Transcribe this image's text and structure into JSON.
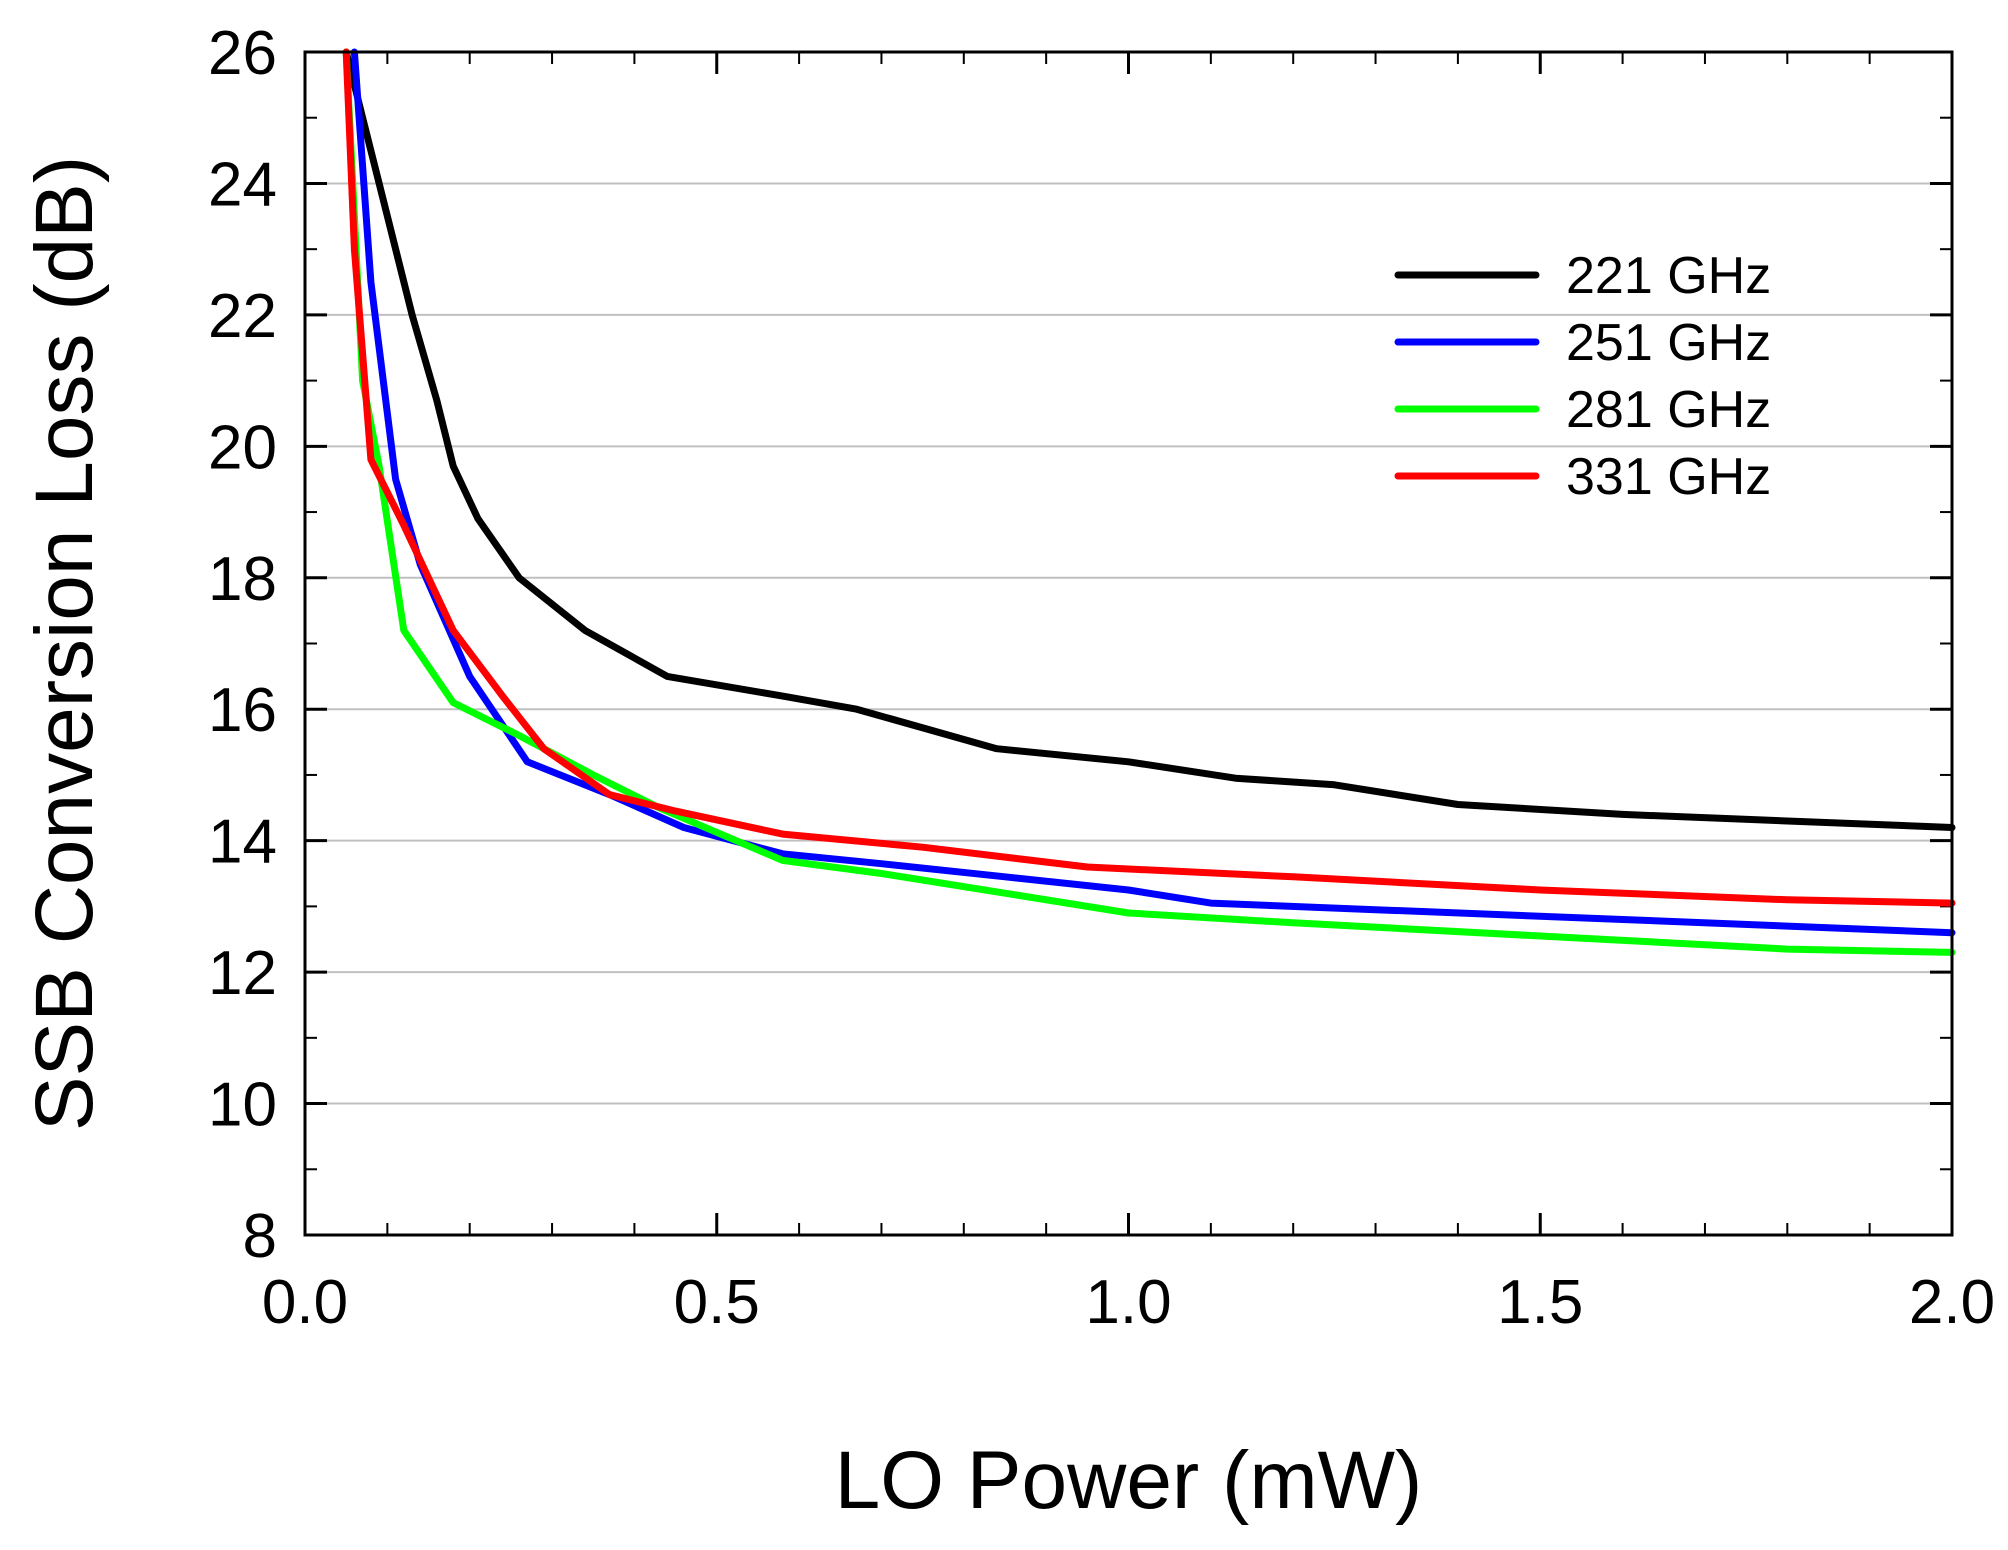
{
  "chart_data": {
    "type": "line",
    "title": "",
    "xlabel": "LO Power (mW)",
    "ylabel": "SSB Conversion Loss (dB)",
    "xlim": [
      0.0,
      2.0
    ],
    "ylim": [
      8,
      26
    ],
    "xticks": [
      0.0,
      0.5,
      1.0,
      1.5,
      2.0
    ],
    "xtick_labels": [
      "0.0",
      "0.5",
      "1.0",
      "1.5",
      "2.0"
    ],
    "yticks": [
      8,
      10,
      12,
      14,
      16,
      18,
      20,
      22,
      24,
      26
    ],
    "ytick_labels": [
      "8",
      "10",
      "12",
      "14",
      "16",
      "18",
      "20",
      "22",
      "24",
      "26"
    ],
    "x_minor_step": 0.1,
    "grid": "horizontal",
    "legend_position": "top-right",
    "series": [
      {
        "name": "221 GHz",
        "color": "#000000",
        "points": [
          [
            0.05,
            26.0
          ],
          [
            0.07,
            25.0
          ],
          [
            0.1,
            23.5
          ],
          [
            0.13,
            22.0
          ],
          [
            0.16,
            20.7
          ],
          [
            0.18,
            19.7
          ],
          [
            0.21,
            18.9
          ],
          [
            0.26,
            18.0
          ],
          [
            0.34,
            17.2
          ],
          [
            0.44,
            16.5
          ],
          [
            0.58,
            16.2
          ],
          [
            0.67,
            16.0
          ],
          [
            0.84,
            15.4
          ],
          [
            1.0,
            15.2
          ],
          [
            1.13,
            14.95
          ],
          [
            1.25,
            14.85
          ],
          [
            1.4,
            14.55
          ],
          [
            1.6,
            14.4
          ],
          [
            1.8,
            14.3
          ],
          [
            2.0,
            14.2
          ]
        ]
      },
      {
        "name": "251 GHz",
        "color": "#0000ff",
        "points": [
          [
            0.06,
            26.0
          ],
          [
            0.08,
            22.5
          ],
          [
            0.11,
            19.5
          ],
          [
            0.14,
            18.2
          ],
          [
            0.2,
            16.5
          ],
          [
            0.27,
            15.2
          ],
          [
            0.37,
            14.7
          ],
          [
            0.46,
            14.2
          ],
          [
            0.58,
            13.8
          ],
          [
            0.7,
            13.65
          ],
          [
            0.85,
            13.45
          ],
          [
            1.0,
            13.25
          ],
          [
            1.1,
            13.05
          ],
          [
            1.3,
            12.95
          ],
          [
            1.6,
            12.8
          ],
          [
            1.8,
            12.7
          ],
          [
            2.0,
            12.6
          ]
        ]
      },
      {
        "name": "281 GHz",
        "color": "#00ff00",
        "points": [
          [
            0.05,
            26.0
          ],
          [
            0.07,
            21.0
          ],
          [
            0.09,
            19.7
          ],
          [
            0.12,
            17.2
          ],
          [
            0.18,
            16.1
          ],
          [
            0.26,
            15.6
          ],
          [
            0.35,
            15.0
          ],
          [
            0.43,
            14.5
          ],
          [
            0.58,
            13.7
          ],
          [
            0.7,
            13.5
          ],
          [
            0.85,
            13.2
          ],
          [
            1.0,
            12.9
          ],
          [
            1.2,
            12.75
          ],
          [
            1.5,
            12.55
          ],
          [
            1.8,
            12.35
          ],
          [
            2.0,
            12.3
          ]
        ]
      },
      {
        "name": "331 GHz",
        "color": "#ff0000",
        "points": [
          [
            0.05,
            26.0
          ],
          [
            0.06,
            23.0
          ],
          [
            0.08,
            19.8
          ],
          [
            0.12,
            18.8
          ],
          [
            0.18,
            17.2
          ],
          [
            0.24,
            16.2
          ],
          [
            0.29,
            15.4
          ],
          [
            0.37,
            14.7
          ],
          [
            0.45,
            14.45
          ],
          [
            0.58,
            14.1
          ],
          [
            0.75,
            13.9
          ],
          [
            0.95,
            13.6
          ],
          [
            1.2,
            13.45
          ],
          [
            1.5,
            13.25
          ],
          [
            1.8,
            13.1
          ],
          [
            2.0,
            13.05
          ]
        ]
      }
    ]
  }
}
